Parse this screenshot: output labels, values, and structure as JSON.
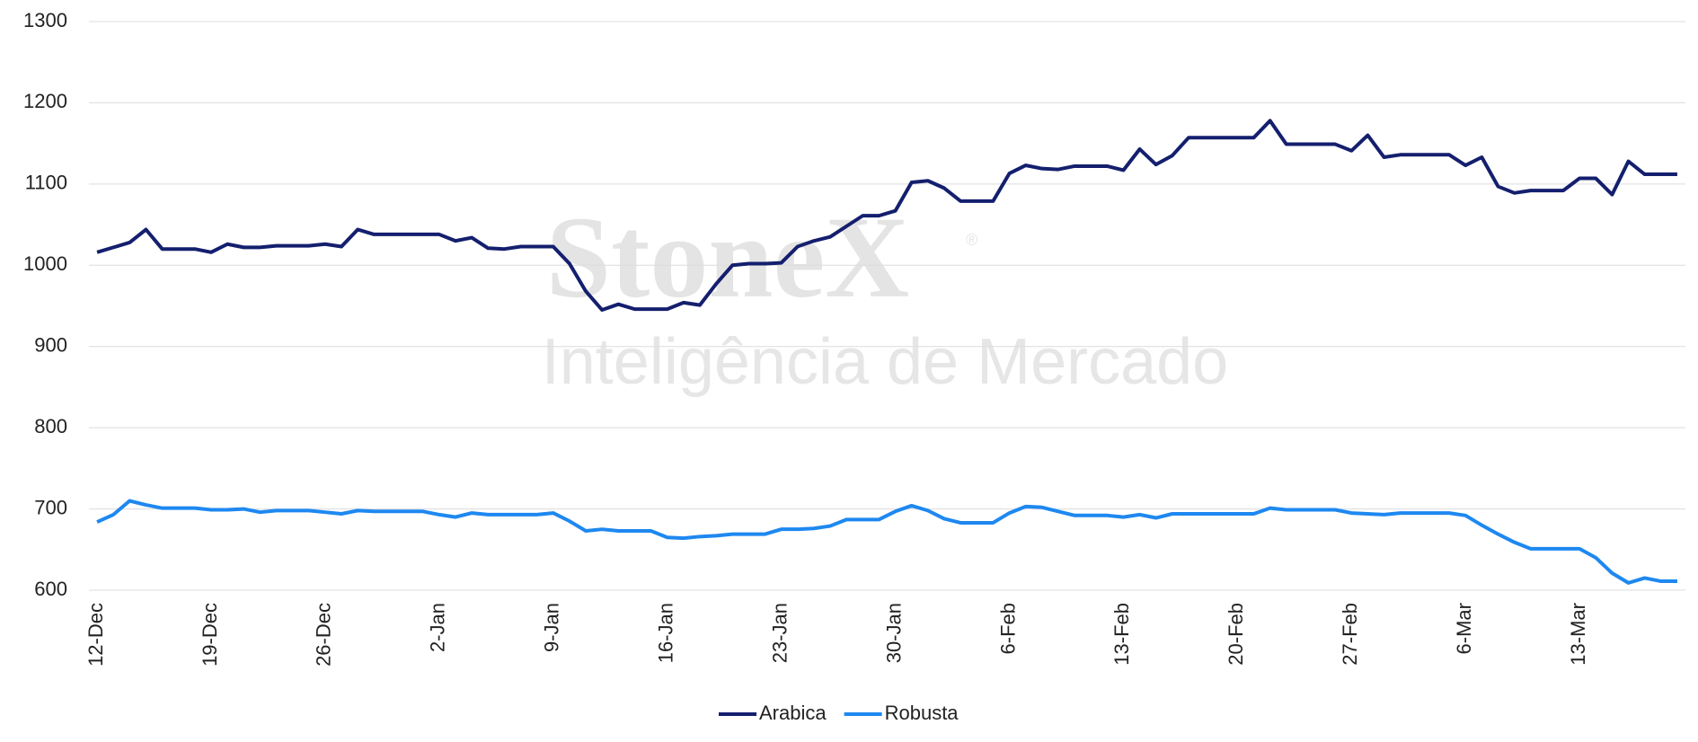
{
  "chart_data": {
    "type": "line",
    "watermark": {
      "brand": "StoneX",
      "mark": "®",
      "tagline": "Inteligência de Mercado"
    },
    "categories": [
      "12-Dec",
      null,
      null,
      null,
      null,
      null,
      null,
      "19-Dec",
      null,
      null,
      null,
      null,
      null,
      null,
      "26-Dec",
      null,
      null,
      null,
      null,
      null,
      null,
      "2-Jan",
      null,
      null,
      null,
      null,
      null,
      null,
      "9-Jan",
      null,
      null,
      null,
      null,
      null,
      null,
      "16-Jan",
      null,
      null,
      null,
      null,
      null,
      null,
      "23-Jan",
      null,
      null,
      null,
      null,
      null,
      null,
      "30-Jan",
      null,
      null,
      null,
      null,
      null,
      null,
      "6-Feb",
      null,
      null,
      null,
      null,
      null,
      null,
      "13-Feb",
      null,
      null,
      null,
      null,
      null,
      null,
      "20-Feb",
      null,
      null,
      null,
      null,
      null,
      null,
      "27-Feb",
      null,
      null,
      null,
      null,
      null,
      null,
      "6-Mar",
      null,
      null,
      null,
      null,
      null,
      null,
      "13-Mar",
      null,
      null,
      null,
      null,
      null,
      null
    ],
    "series": [
      {
        "name": "Arabica",
        "color": "#141f6e",
        "values": [
          1016,
          1022,
          1028,
          1044,
          1020,
          1020,
          1020,
          1016,
          1026,
          1022,
          1022,
          1024,
          1024,
          1024,
          1026,
          1023,
          1044,
          1038,
          1038,
          1038,
          1038,
          1038,
          1030,
          1034,
          1021,
          1020,
          1023,
          1023,
          1023,
          1002,
          968,
          945,
          952,
          946,
          946,
          946,
          954,
          951,
          977,
          1000,
          1002,
          1002,
          1003,
          1023,
          1030,
          1035,
          1048,
          1061,
          1061,
          1067,
          1102,
          1104,
          1095,
          1079,
          1079,
          1079,
          1113,
          1123,
          1119,
          1118,
          1122,
          1122,
          1122,
          1117,
          1143,
          1124,
          1135,
          1157,
          1157,
          1157,
          1157,
          1157,
          1178,
          1149,
          1149,
          1149,
          1149,
          1141,
          1160,
          1133,
          1136,
          1136,
          1136,
          1136,
          1123,
          1133,
          1097,
          1089,
          1092,
          1092,
          1092,
          1107,
          1107,
          1087,
          1128,
          1112,
          1112,
          1112
        ]
      },
      {
        "name": "Robusta",
        "color": "#1e88f0",
        "values": [
          684,
          693,
          710,
          705,
          701,
          701,
          701,
          699,
          699,
          700,
          696,
          698,
          698,
          698,
          696,
          694,
          698,
          697,
          697,
          697,
          697,
          693,
          690,
          695,
          693,
          693,
          693,
          693,
          695,
          685,
          673,
          675,
          673,
          673,
          673,
          665,
          664,
          666,
          667,
          669,
          669,
          669,
          675,
          675,
          676,
          679,
          687,
          687,
          687,
          697,
          704,
          698,
          688,
          683,
          683,
          683,
          695,
          703,
          702,
          697,
          692,
          692,
          692,
          690,
          693,
          689,
          694,
          694,
          694,
          694,
          694,
          694,
          701,
          699,
          699,
          699,
          699,
          695,
          694,
          693,
          695,
          695,
          695,
          695,
          692,
          680,
          669,
          659,
          651,
          651,
          651,
          651,
          640,
          621,
          609,
          615,
          611,
          611
        ]
      }
    ],
    "ylim": [
      600,
      1300
    ],
    "yticks": [
      600,
      700,
      800,
      900,
      1000,
      1100,
      1200,
      1300
    ],
    "grid": true,
    "legend": "bottom"
  }
}
